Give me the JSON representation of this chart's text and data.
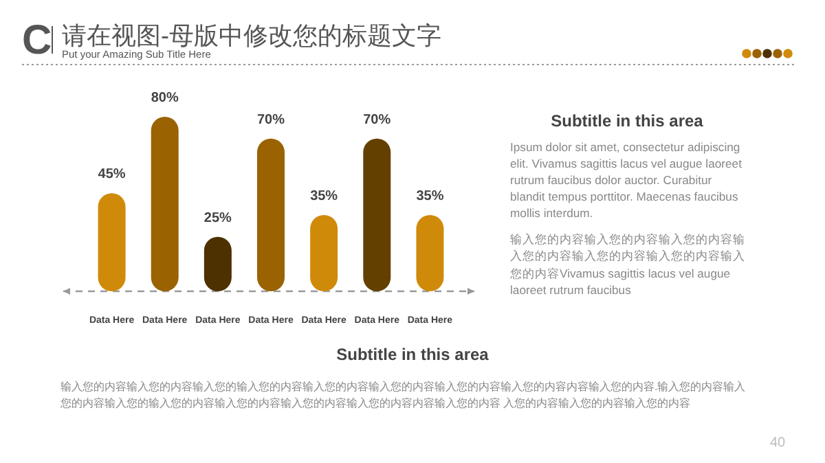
{
  "chart_data": {
    "type": "bar",
    "title": "请在视图-母版中修改您的标题文字",
    "subtitle": "Put your Amazing Sub Title Here",
    "categories": [
      "Data Here",
      "Data Here",
      "Data Here",
      "Data Here",
      "Data Here",
      "Data Here",
      "Data Here"
    ],
    "values": [
      45,
      80,
      25,
      70,
      35,
      70,
      35
    ],
    "colors": [
      "#d08a0a",
      "#9a6200",
      "#4e3100",
      "#9a6200",
      "#d08a0a",
      "#644000",
      "#d08a0a"
    ],
    "ref_lines": [
      {
        "axis": "y",
        "value": 0,
        "color": "#999999",
        "line_style": "dashed"
      }
    ],
    "value_labels": [
      "45%",
      "80%",
      "25%",
      "70%",
      "35%",
      "70%",
      "35%"
    ],
    "annotations": [
      "C",
      "Subtitle in this area",
      "Ipsum dolor sit amet, consectetur adipiscing elit. Vivamus sagittis lacus vel augue laoreet rutrum faucibus dolor auctor. Curabitur blandit tempus porttitor. Maecenas faucibus mollis interdum.",
      "输入您的内容输入您的内容输入您的内容输入您的内容输入您的内容输入您的内容输入您的内容Vivamus sagittis lacus vel augue laoreet rutrum faucibus",
      "Subtitle in this area",
      "输入您的内容输入您的内容输入您的输入您的内容输入您的内容输入您的内容输入您的内容输入您的内容内容输入您的内容.输入您的内容输入您的内容输入您的输入您的内容输入您的内容输入您的内容输入您的内容内容输入您的内容 入您的内容输入您的内容输入您的内容",
      "40"
    ]
  }
}
